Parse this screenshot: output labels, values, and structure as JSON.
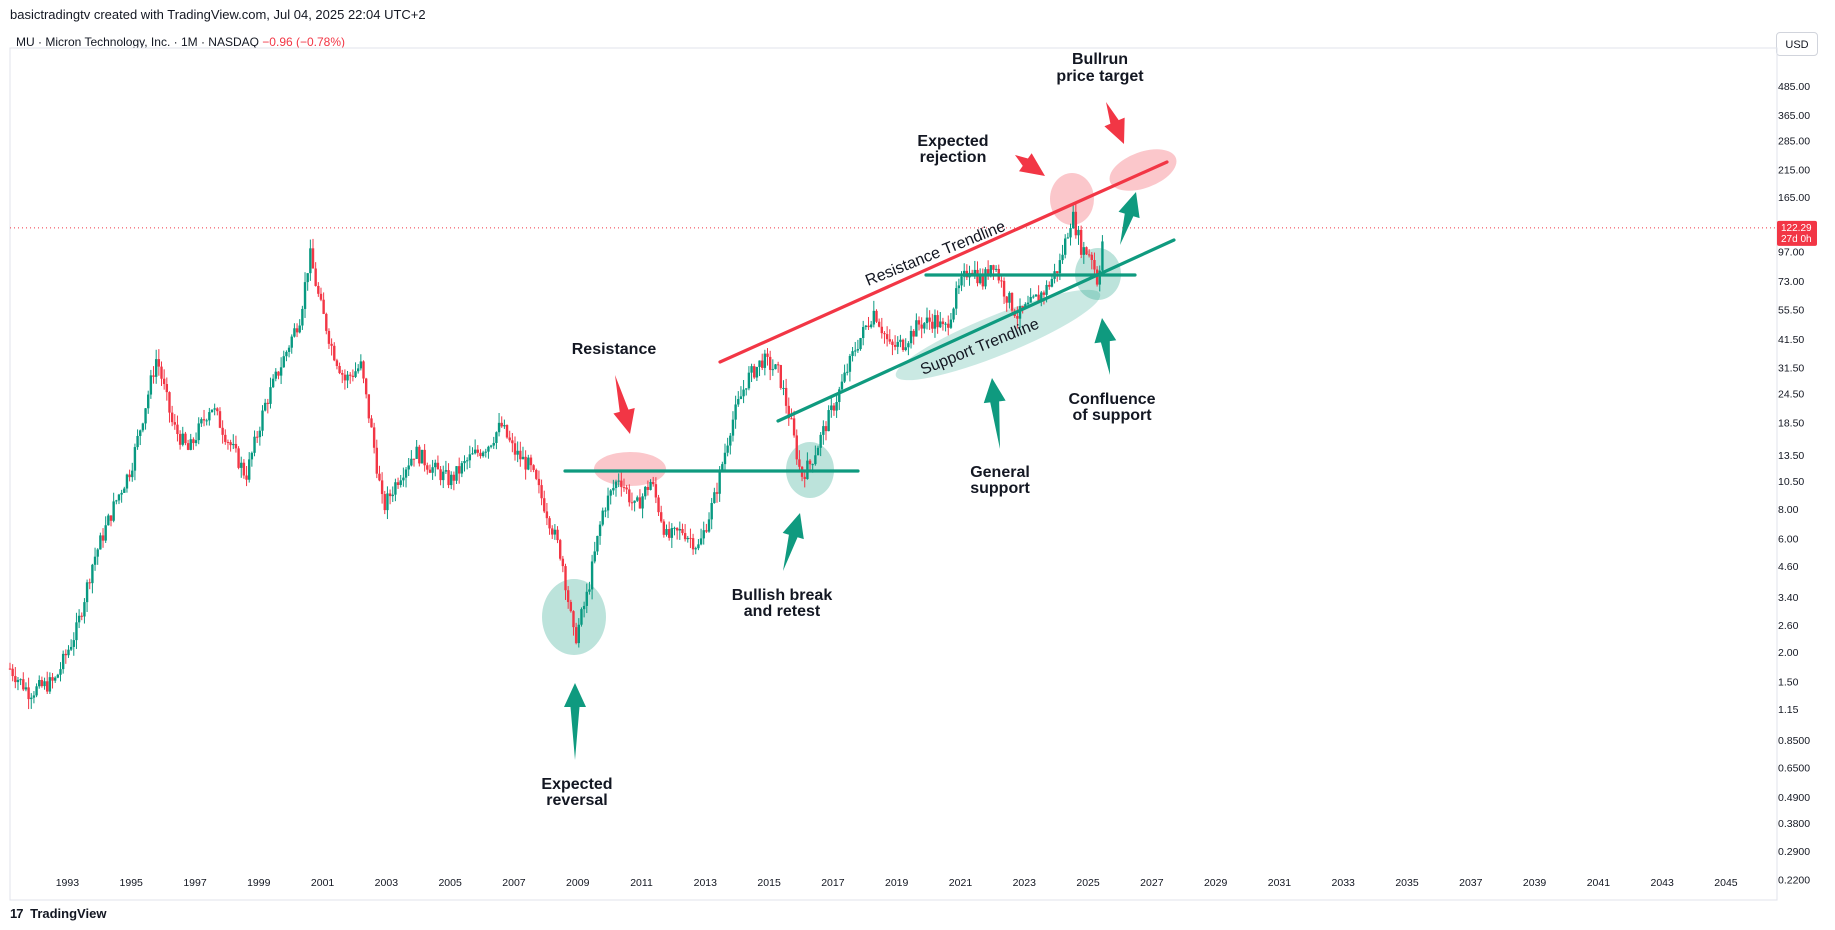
{
  "header": {
    "credit": "basictradingtv created with TradingView.com, Jul 04, 2025 22:04 UTC+2"
  },
  "symbol": {
    "name": "MU · Micron Technology, Inc. · 1M · NASDAQ",
    "change": "−0.96 (−0.78%)"
  },
  "currency": "USD",
  "footer": {
    "logo": "17",
    "brand": "TradingView"
  },
  "colors": {
    "up": "#089981",
    "down": "#f23645",
    "teal": "#0f9a7f",
    "red": "#f23645"
  },
  "chart_data": {
    "type": "candlestick",
    "interval": "1M",
    "y_scale": "log",
    "ylim": [
      0.18,
      700
    ],
    "xlim": [
      1991.2,
      2046.6
    ],
    "x_ticks": [
      "1993",
      "1995",
      "1997",
      "1999",
      "2001",
      "2003",
      "2005",
      "2007",
      "2009",
      "2011",
      "2013",
      "2015",
      "2017",
      "2019",
      "2021",
      "2023",
      "2025",
      "2027",
      "2029",
      "2031",
      "2033",
      "2035",
      "2037",
      "2039",
      "2041",
      "2043",
      "2045"
    ],
    "y_ticks": [
      "485.00",
      "365.00",
      "285.00",
      "215.00",
      "165.00",
      "97.00",
      "73.00",
      "55.50",
      "41.50",
      "31.50",
      "24.50",
      "18.50",
      "13.50",
      "10.50",
      "8.00",
      "6.00",
      "4.60",
      "3.40",
      "2.60",
      "2.00",
      "1.50",
      "1.15",
      "0.8500",
      "0.6500",
      "0.4900",
      "0.3800",
      "0.2900",
      "0.2200"
    ],
    "last_price": "122.29",
    "countdown": "27d 0h",
    "price_path": [
      [
        1991.2,
        1.7
      ],
      [
        1991.8,
        1.35
      ],
      [
        1992.6,
        1.5
      ],
      [
        1993.3,
        2.5
      ],
      [
        1993.8,
        4.8
      ],
      [
        1994.5,
        8.5
      ],
      [
        1995.0,
        12.0
      ],
      [
        1995.8,
        35.0
      ],
      [
        1996.3,
        18.0
      ],
      [
        1996.8,
        14.0
      ],
      [
        1997.5,
        22.0
      ],
      [
        1998.0,
        16.0
      ],
      [
        1998.6,
        11.0
      ],
      [
        1999.2,
        22.0
      ],
      [
        1999.8,
        35.0
      ],
      [
        2000.3,
        52.0
      ],
      [
        2000.6,
        95.0
      ],
      [
        2000.9,
        60.0
      ],
      [
        2001.3,
        38.0
      ],
      [
        2001.7,
        28.0
      ],
      [
        2002.2,
        32.0
      ],
      [
        2002.6,
        15.0
      ],
      [
        2002.9,
        8.0
      ],
      [
        2003.4,
        11.0
      ],
      [
        2003.9,
        14.0
      ],
      [
        2004.4,
        12.0
      ],
      [
        2005.0,
        10.5
      ],
      [
        2005.6,
        13.0
      ],
      [
        2006.2,
        15.0
      ],
      [
        2006.6,
        18.0
      ],
      [
        2007.0,
        14.0
      ],
      [
        2007.5,
        12.0
      ],
      [
        2008.0,
        8.0
      ],
      [
        2008.5,
        5.0
      ],
      [
        2008.9,
        2.2
      ],
      [
        2009.3,
        3.5
      ],
      [
        2009.8,
        8.0
      ],
      [
        2010.3,
        11.0
      ],
      [
        2010.8,
        8.0
      ],
      [
        2011.3,
        10.5
      ],
      [
        2011.8,
        6.0
      ],
      [
        2012.3,
        6.5
      ],
      [
        2012.8,
        5.5
      ],
      [
        2013.3,
        9.0
      ],
      [
        2013.8,
        18.0
      ],
      [
        2014.3,
        28.0
      ],
      [
        2014.8,
        34.0
      ],
      [
        2015.3,
        30.0
      ],
      [
        2015.7,
        18.0
      ],
      [
        2016.0,
        11.0
      ],
      [
        2016.3,
        12.5
      ],
      [
        2016.7,
        17.0
      ],
      [
        2017.2,
        25.0
      ],
      [
        2017.7,
        38.0
      ],
      [
        2018.3,
        55.0
      ],
      [
        2018.8,
        38.0
      ],
      [
        2019.2,
        40.0
      ],
      [
        2019.7,
        48.0
      ],
      [
        2020.2,
        50.0
      ],
      [
        2020.5,
        45.0
      ],
      [
        2020.9,
        65.0
      ],
      [
        2021.3,
        85.0
      ],
      [
        2021.7,
        72.0
      ],
      [
        2022.0,
        90.0
      ],
      [
        2022.4,
        65.0
      ],
      [
        2022.8,
        52.0
      ],
      [
        2023.2,
        58.0
      ],
      [
        2023.7,
        68.0
      ],
      [
        2024.1,
        85.0
      ],
      [
        2024.5,
        140.0
      ],
      [
        2024.8,
        100.0
      ],
      [
        2025.1,
        95.0
      ],
      [
        2025.3,
        72.0
      ],
      [
        2025.5,
        122.29
      ]
    ],
    "annotations": {
      "bullrun": [
        "Bullrun",
        "price target"
      ],
      "rejection": [
        "Expected",
        "rejection"
      ],
      "resistance": "Resistance",
      "resistance_trendline": "Resistance Trendline",
      "support_trendline": "Support Trendline",
      "confluence": [
        "Confluence",
        "of support"
      ],
      "general_support": [
        "General",
        "support"
      ],
      "bullish_break": [
        "Bullish break",
        "and retest"
      ],
      "expected_reversal": [
        "Expected",
        "reversal"
      ]
    }
  }
}
